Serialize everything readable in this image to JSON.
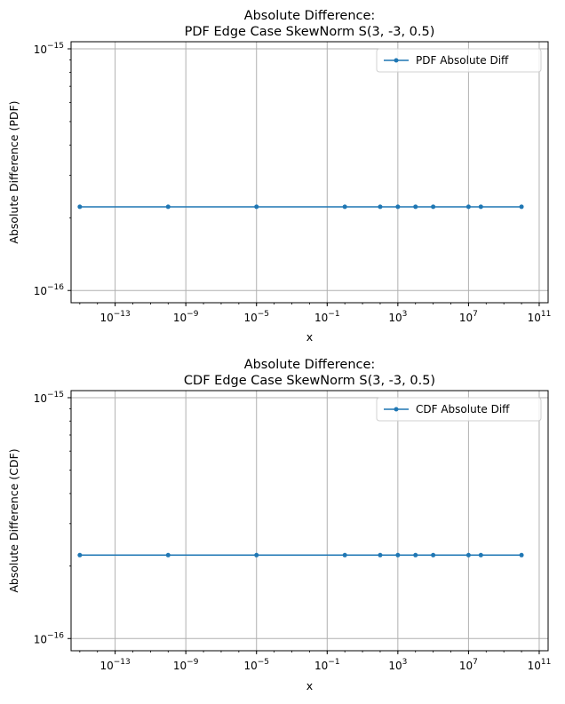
{
  "chart_data": [
    {
      "type": "line",
      "title": "Absolute Difference:",
      "subtitle": "PDF Edge Case SkewNorm S(3, -3, 0.5)",
      "xlabel": "x",
      "ylabel": "Absolute Difference (PDF)",
      "xscale": "log",
      "yscale": "log",
      "xlim": [
        3.2e-16,
        320000000000.0
      ],
      "ylim": [
        8.9e-17,
        1.07e-15
      ],
      "grid": true,
      "legend_position": "top-right",
      "x_ticks": [
        {
          "value": 1e-13,
          "base": "10",
          "exp": "−13"
        },
        {
          "value": 1e-09,
          "base": "10",
          "exp": "−9"
        },
        {
          "value": 1e-05,
          "base": "10",
          "exp": "−5"
        },
        {
          "value": 0.1,
          "base": "10",
          "exp": "−1"
        },
        {
          "value": 1000,
          "base": "10",
          "exp": "3"
        },
        {
          "value": 10000000.0,
          "base": "10",
          "exp": "7"
        },
        {
          "value": 100000000000.0,
          "base": "10",
          "exp": "11"
        }
      ],
      "y_ticks": [
        {
          "value": 1e-16,
          "base": "10",
          "exp": "−16"
        },
        {
          "value": 1e-15,
          "base": "10",
          "exp": "−15"
        }
      ],
      "series": [
        {
          "name": "PDF Absolute Diff",
          "color": "#1f77b4",
          "x": [
            1e-15,
            1e-10,
            1e-05,
            1,
            100,
            1000,
            10000,
            100000,
            10000000.0,
            50000000.0,
            10000000000.0
          ],
          "y": [
            2.22e-16,
            2.22e-16,
            2.22e-16,
            2.22e-16,
            2.22e-16,
            2.22e-16,
            2.22e-16,
            2.22e-16,
            2.22e-16,
            2.22e-16,
            2.22e-16
          ]
        }
      ]
    },
    {
      "type": "line",
      "title": "Absolute Difference:",
      "subtitle": "CDF Edge Case SkewNorm S(3, -3, 0.5)",
      "xlabel": "x",
      "ylabel": "Absolute Difference (CDF)",
      "xscale": "log",
      "yscale": "log",
      "xlim": [
        3.2e-16,
        320000000000.0
      ],
      "ylim": [
        8.9e-17,
        1.07e-15
      ],
      "grid": true,
      "legend_position": "top-right",
      "x_ticks": [
        {
          "value": 1e-13,
          "base": "10",
          "exp": "−13"
        },
        {
          "value": 1e-09,
          "base": "10",
          "exp": "−9"
        },
        {
          "value": 1e-05,
          "base": "10",
          "exp": "−5"
        },
        {
          "value": 0.1,
          "base": "10",
          "exp": "−1"
        },
        {
          "value": 1000,
          "base": "10",
          "exp": "3"
        },
        {
          "value": 10000000.0,
          "base": "10",
          "exp": "7"
        },
        {
          "value": 100000000000.0,
          "base": "10",
          "exp": "11"
        }
      ],
      "y_ticks": [
        {
          "value": 1e-16,
          "base": "10",
          "exp": "−16"
        },
        {
          "value": 1e-15,
          "base": "10",
          "exp": "−15"
        }
      ],
      "series": [
        {
          "name": "CDF Absolute Diff",
          "color": "#1f77b4",
          "x": [
            1e-15,
            1e-10,
            1e-05,
            1,
            100,
            1000,
            10000,
            100000,
            10000000.0,
            50000000.0,
            10000000000.0
          ],
          "y": [
            2.22e-16,
            2.22e-16,
            2.22e-16,
            2.22e-16,
            2.22e-16,
            2.22e-16,
            2.22e-16,
            2.22e-16,
            2.22e-16,
            2.22e-16,
            2.22e-16
          ]
        }
      ]
    }
  ]
}
